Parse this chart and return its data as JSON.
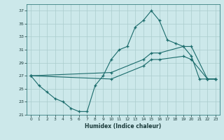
{
  "xlabel": "Humidex (Indice chaleur)",
  "bg_color": "#cce8ea",
  "grid_color": "#aacccc",
  "line_color": "#1a6b6b",
  "xlim": [
    -0.5,
    23.5
  ],
  "ylim": [
    21,
    38
  ],
  "yticks": [
    21,
    23,
    25,
    27,
    29,
    31,
    33,
    35,
    37
  ],
  "xticks": [
    0,
    1,
    2,
    3,
    4,
    5,
    6,
    7,
    8,
    9,
    10,
    11,
    12,
    13,
    14,
    15,
    16,
    17,
    18,
    19,
    20,
    21,
    22,
    23
  ],
  "line1_x": [
    0,
    1,
    2,
    3,
    4,
    5,
    6,
    7,
    8,
    9,
    10,
    11,
    12,
    13,
    14,
    15,
    16,
    17,
    18,
    19,
    20,
    21,
    22,
    23
  ],
  "line1_y": [
    27,
    25.5,
    24.5,
    23.5,
    23,
    22,
    21.5,
    21.5,
    25.5,
    27,
    29.5,
    31,
    31.5,
    34.5,
    35.5,
    37,
    35.5,
    32.5,
    32,
    31.5,
    30.0,
    26.5,
    26.5,
    26.5
  ],
  "line2_x": [
    0,
    10,
    14,
    15,
    16,
    19,
    20,
    22,
    23
  ],
  "line2_y": [
    27,
    27.5,
    29.5,
    30.5,
    30.5,
    31.5,
    31.5,
    26.5,
    26.5
  ],
  "line3_x": [
    0,
    10,
    14,
    15,
    16,
    19,
    20,
    22,
    23
  ],
  "line3_y": [
    27,
    26.5,
    28.5,
    29.5,
    29.5,
    30.0,
    29.5,
    26.5,
    26.5
  ]
}
